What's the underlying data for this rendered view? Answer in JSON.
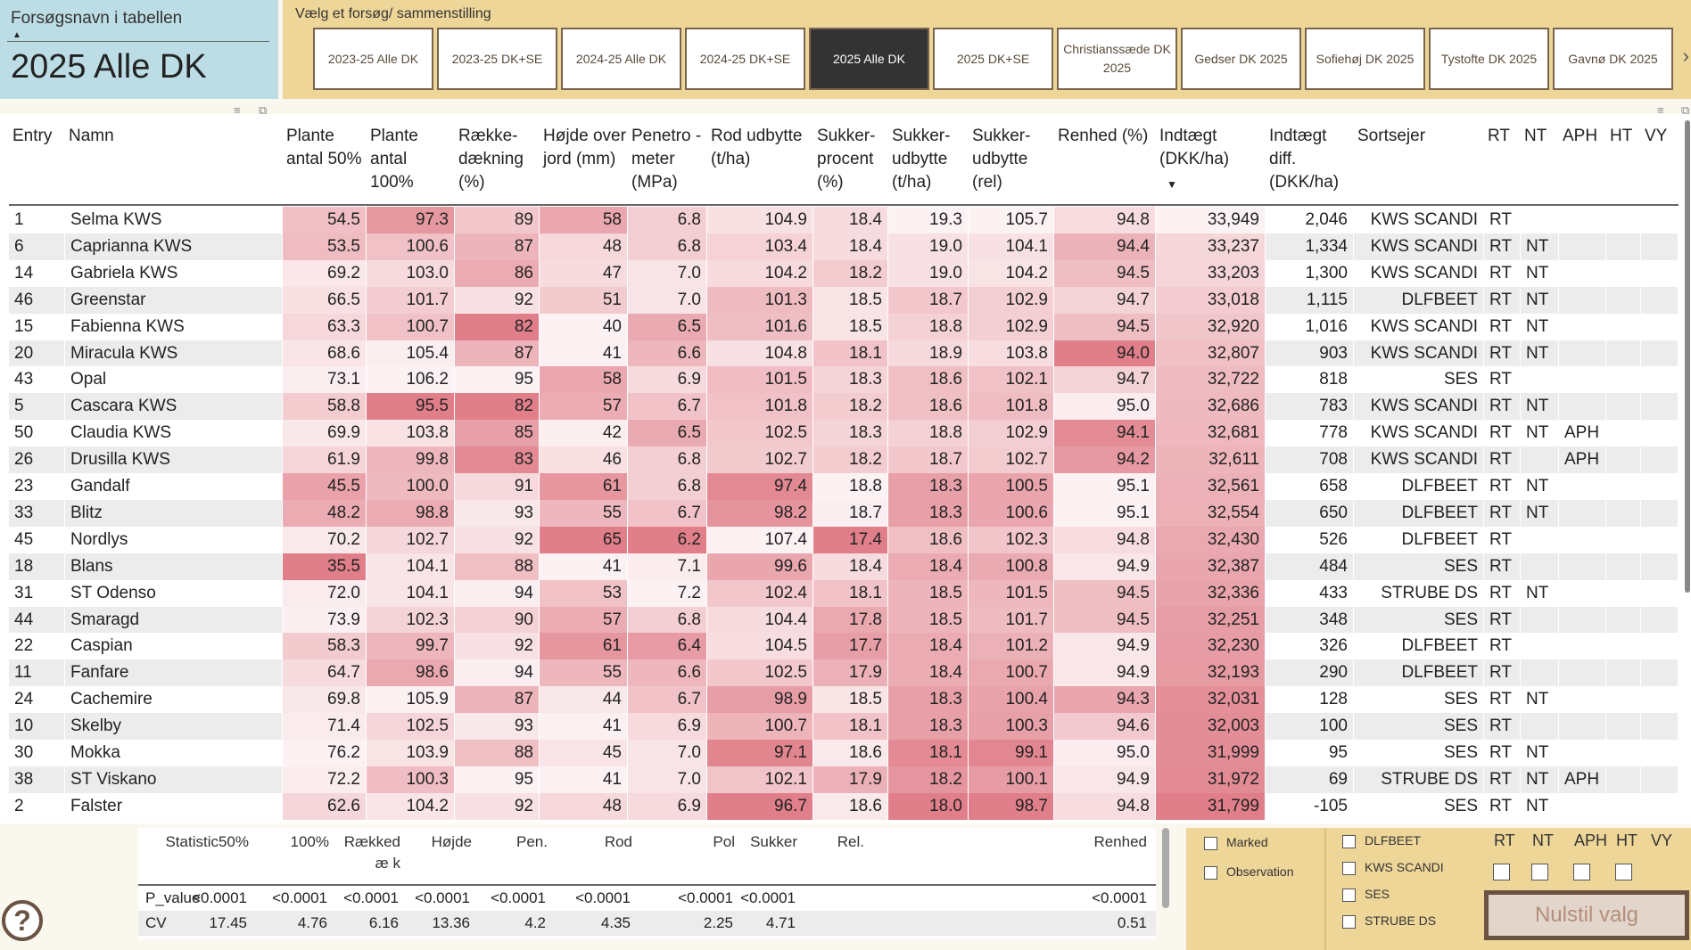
{
  "title_panel": {
    "label": "Forsøgsnavn i tabellen",
    "value": "2025 Alle DK"
  },
  "selector": {
    "label": "Vælg et forsøg/ sammenstilling",
    "selected": "2025 Alle DK",
    "options": [
      "2023-25 Alle DK",
      "2023-25 DK+SE",
      "2024-25 Alle DK",
      "2024-25 DK+SE",
      "2025 Alle DK",
      "2025 DK+SE",
      "Christianssæde DK 2025",
      "Gedser DK 2025",
      "Sofiehøj DK 2025",
      "Tystofte DK 2025",
      "Gavnø DK 2025"
    ]
  },
  "table": {
    "columns": [
      "Entry",
      "Namn",
      "Plante antal 50%",
      "Plante antal 100%",
      "Række- dækning (%)",
      "Højde over jord (mm)",
      "Penetro - meter (MPa)",
      "Rod udbytte (t/ha)",
      "Sukker- procent (%)",
      "Sukker- udbytte (t/ha)",
      "Sukker- udbytte (rel)",
      "Renhed (%)",
      "Indtægt (DKK/ha)",
      "Indtægt diff. (DKK/ha)",
      "Sortsejer",
      "RT",
      "NT",
      "APH",
      "HT",
      "VY"
    ],
    "sorted_column": "Indtægt (DKK/ha)",
    "sort_direction": "descending",
    "heat_color": "#e07f8a",
    "rows": [
      [
        "1",
        "Selma KWS",
        "54.5",
        "97.3",
        "89",
        "58",
        "6.8",
        "104.9",
        "18.4",
        "19.3",
        "105.7",
        "94.8",
        "33,949",
        "2,046",
        "KWS SCANDI",
        "RT",
        "",
        "",
        "",
        ""
      ],
      [
        "6",
        "Caprianna KWS",
        "53.5",
        "100.6",
        "87",
        "48",
        "6.8",
        "103.4",
        "18.4",
        "19.0",
        "104.1",
        "94.4",
        "33,237",
        "1,334",
        "KWS SCANDI",
        "RT",
        "NT",
        "",
        "",
        ""
      ],
      [
        "14",
        "Gabriela KWS",
        "69.2",
        "103.0",
        "86",
        "47",
        "7.0",
        "104.2",
        "18.2",
        "19.0",
        "104.2",
        "94.5",
        "33,203",
        "1,300",
        "KWS SCANDI",
        "RT",
        "NT",
        "",
        "",
        ""
      ],
      [
        "46",
        "Greenstar",
        "66.5",
        "101.7",
        "92",
        "51",
        "7.0",
        "101.3",
        "18.5",
        "18.7",
        "102.9",
        "94.7",
        "33,018",
        "1,115",
        "DLFBEET",
        "RT",
        "NT",
        "",
        "",
        ""
      ],
      [
        "15",
        "Fabienna KWS",
        "63.3",
        "100.7",
        "82",
        "40",
        "6.5",
        "101.6",
        "18.5",
        "18.8",
        "102.9",
        "94.5",
        "32,920",
        "1,016",
        "KWS SCANDI",
        "RT",
        "NT",
        "",
        "",
        ""
      ],
      [
        "20",
        "Miracula KWS",
        "68.6",
        "105.4",
        "87",
        "41",
        "6.6",
        "104.8",
        "18.1",
        "18.9",
        "103.8",
        "94.0",
        "32,807",
        "903",
        "KWS SCANDI",
        "RT",
        "NT",
        "",
        "",
        ""
      ],
      [
        "43",
        "Opal",
        "73.1",
        "106.2",
        "95",
        "58",
        "6.9",
        "101.5",
        "18.3",
        "18.6",
        "102.1",
        "94.7",
        "32,722",
        "818",
        "SES",
        "RT",
        "",
        "",
        "",
        ""
      ],
      [
        "5",
        "Cascara KWS",
        "58.8",
        "95.5",
        "82",
        "57",
        "6.7",
        "101.8",
        "18.2",
        "18.6",
        "101.8",
        "95.0",
        "32,686",
        "783",
        "KWS SCANDI",
        "RT",
        "NT",
        "",
        "",
        ""
      ],
      [
        "50",
        "Claudia KWS",
        "69.9",
        "103.8",
        "85",
        "42",
        "6.5",
        "102.5",
        "18.3",
        "18.8",
        "102.9",
        "94.1",
        "32,681",
        "778",
        "KWS SCANDI",
        "RT",
        "NT",
        "APH",
        "",
        ""
      ],
      [
        "26",
        "Drusilla KWS",
        "61.9",
        "99.8",
        "83",
        "46",
        "6.8",
        "102.7",
        "18.2",
        "18.7",
        "102.7",
        "94.2",
        "32,611",
        "708",
        "KWS SCANDI",
        "RT",
        "",
        "APH",
        "",
        ""
      ],
      [
        "23",
        "Gandalf",
        "45.5",
        "100.0",
        "91",
        "61",
        "6.8",
        "97.4",
        "18.8",
        "18.3",
        "100.5",
        "95.1",
        "32,561",
        "658",
        "DLFBEET",
        "RT",
        "NT",
        "",
        "",
        ""
      ],
      [
        "33",
        "Blitz",
        "48.2",
        "98.8",
        "93",
        "55",
        "6.7",
        "98.2",
        "18.7",
        "18.3",
        "100.6",
        "95.1",
        "32,554",
        "650",
        "DLFBEET",
        "RT",
        "NT",
        "",
        "",
        ""
      ],
      [
        "45",
        "Nordlys",
        "70.2",
        "102.7",
        "92",
        "65",
        "6.2",
        "107.4",
        "17.4",
        "18.6",
        "102.3",
        "94.8",
        "32,430",
        "526",
        "DLFBEET",
        "RT",
        "",
        "",
        "",
        ""
      ],
      [
        "18",
        "Blans",
        "35.5",
        "104.1",
        "88",
        "41",
        "7.1",
        "99.6",
        "18.4",
        "18.4",
        "100.8",
        "94.9",
        "32,387",
        "484",
        "SES",
        "RT",
        "",
        "",
        "",
        ""
      ],
      [
        "31",
        "ST Odenso",
        "72.0",
        "104.1",
        "94",
        "53",
        "7.2",
        "102.4",
        "18.1",
        "18.5",
        "101.5",
        "94.5",
        "32,336",
        "433",
        "STRUBE DS",
        "RT",
        "NT",
        "",
        "",
        ""
      ],
      [
        "44",
        "Smaragd",
        "73.9",
        "102.3",
        "90",
        "57",
        "6.8",
        "104.4",
        "17.8",
        "18.5",
        "101.7",
        "94.5",
        "32,251",
        "348",
        "SES",
        "RT",
        "",
        "",
        "",
        ""
      ],
      [
        "22",
        "Caspian",
        "58.3",
        "99.7",
        "92",
        "61",
        "6.4",
        "104.5",
        "17.7",
        "18.4",
        "101.2",
        "94.9",
        "32,230",
        "326",
        "DLFBEET",
        "RT",
        "",
        "",
        "",
        ""
      ],
      [
        "11",
        "Fanfare",
        "64.7",
        "98.6",
        "94",
        "55",
        "6.6",
        "102.5",
        "17.9",
        "18.4",
        "100.7",
        "94.9",
        "32,193",
        "290",
        "DLFBEET",
        "RT",
        "",
        "",
        "",
        ""
      ],
      [
        "24",
        "Cachemire",
        "69.8",
        "105.9",
        "87",
        "44",
        "6.7",
        "98.9",
        "18.5",
        "18.3",
        "100.4",
        "94.3",
        "32,031",
        "128",
        "SES",
        "RT",
        "NT",
        "",
        "",
        ""
      ],
      [
        "10",
        "Skelby",
        "71.4",
        "102.5",
        "93",
        "41",
        "6.9",
        "100.7",
        "18.1",
        "18.3",
        "100.3",
        "94.6",
        "32,003",
        "100",
        "SES",
        "RT",
        "",
        "",
        "",
        ""
      ],
      [
        "30",
        "Mokka",
        "76.2",
        "103.9",
        "88",
        "45",
        "7.0",
        "97.1",
        "18.6",
        "18.1",
        "99.1",
        "95.0",
        "31,999",
        "95",
        "SES",
        "RT",
        "NT",
        "",
        "",
        ""
      ],
      [
        "38",
        "ST Viskano",
        "72.2",
        "100.3",
        "95",
        "41",
        "7.0",
        "102.1",
        "17.9",
        "18.2",
        "100.1",
        "94.9",
        "31,972",
        "69",
        "STRUBE DS",
        "RT",
        "NT",
        "APH",
        "",
        ""
      ],
      [
        "2",
        "Falster",
        "62.6",
        "104.2",
        "92",
        "48",
        "6.9",
        "96.7",
        "18.6",
        "18.0",
        "98.7",
        "94.8",
        "31,799",
        "-105",
        "SES",
        "RT",
        "NT",
        "",
        "",
        ""
      ]
    ]
  },
  "statistics": {
    "columns": [
      "Statistic",
      "50%",
      "100%",
      "Rækkedæ k",
      "Højde",
      "Pen.",
      "Rod",
      "Pol",
      "Sukker",
      "Rel.",
      "Renhed"
    ],
    "rows": [
      [
        "P_value",
        "<0.0001",
        "<0.0001",
        "<0.0001",
        "<0.0001",
        "<0.0001",
        "<0.0001",
        "<0.0001",
        "<0.0001",
        "",
        "<0.0001"
      ],
      [
        "CV",
        "17.45",
        "4.76",
        "6.16",
        "13.36",
        "4.2",
        "4.35",
        "2.25",
        "4.71",
        "",
        "0.51"
      ]
    ]
  },
  "filters": {
    "display": [
      "Marked",
      "Observation"
    ],
    "owners": [
      "DLFBEET",
      "KWS SCANDI",
      "SES",
      "STRUBE DS"
    ],
    "traits": [
      "RT",
      "NT",
      "APH",
      "HT",
      "VY"
    ],
    "reset_label": "Nulstil valg",
    "help_icon": "?"
  }
}
